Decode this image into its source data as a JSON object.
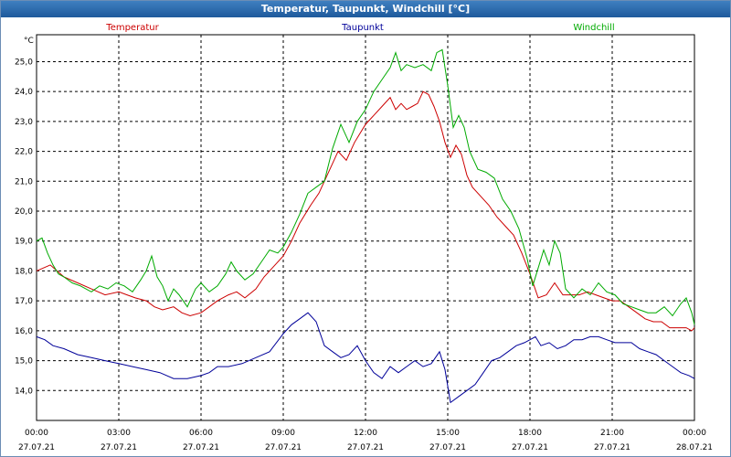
{
  "window": {
    "title": "Temperatur, Taupunkt, Windchill [°C]"
  },
  "chart_data": {
    "type": "line",
    "unit_label": "°C",
    "ylim": [
      13.0,
      25.9
    ],
    "yticks": [
      14.0,
      15.0,
      16.0,
      17.0,
      18.0,
      19.0,
      20.0,
      21.0,
      22.0,
      23.0,
      24.0,
      25.0
    ],
    "ytick_labels": [
      "14,0",
      "15,0",
      "16,0",
      "17,0",
      "18,0",
      "19,0",
      "20,0",
      "21,0",
      "22,0",
      "23,0",
      "24,0",
      "25,0"
    ],
    "xlim": [
      0,
      24
    ],
    "xticks": [
      {
        "h": 0,
        "time": "00:00",
        "date": "27.07.21"
      },
      {
        "h": 3,
        "time": "03:00",
        "date": "27.07.21"
      },
      {
        "h": 6,
        "time": "06:00",
        "date": "27.07.21"
      },
      {
        "h": 9,
        "time": "09:00",
        "date": "27.07.21"
      },
      {
        "h": 12,
        "time": "12:00",
        "date": "27.07.21"
      },
      {
        "h": 15,
        "time": "15:00",
        "date": "27.07.21"
      },
      {
        "h": 18,
        "time": "18:00",
        "date": "27.07.21"
      },
      {
        "h": 21,
        "time": "21:00",
        "date": "27.07.21"
      },
      {
        "h": 24,
        "time": "00:00",
        "date": "28.07.21"
      }
    ],
    "grid": true,
    "series": [
      {
        "name": "Temperatur",
        "color": "#cc0000",
        "points": [
          [
            0,
            18.0
          ],
          [
            0.25,
            18.1
          ],
          [
            0.5,
            18.2
          ],
          [
            0.75,
            18.0
          ],
          [
            1,
            17.8
          ],
          [
            1.5,
            17.6
          ],
          [
            2,
            17.4
          ],
          [
            2.5,
            17.2
          ],
          [
            3,
            17.3
          ],
          [
            3.3,
            17.2
          ],
          [
            3.6,
            17.1
          ],
          [
            4,
            17.0
          ],
          [
            4.3,
            16.8
          ],
          [
            4.6,
            16.7
          ],
          [
            5,
            16.8
          ],
          [
            5.3,
            16.6
          ],
          [
            5.6,
            16.5
          ],
          [
            6,
            16.6
          ],
          [
            6.3,
            16.8
          ],
          [
            6.6,
            17.0
          ],
          [
            7,
            17.2
          ],
          [
            7.3,
            17.3
          ],
          [
            7.6,
            17.1
          ],
          [
            8,
            17.4
          ],
          [
            8.3,
            17.8
          ],
          [
            8.6,
            18.1
          ],
          [
            9,
            18.5
          ],
          [
            9.3,
            19.0
          ],
          [
            9.6,
            19.6
          ],
          [
            10,
            20.2
          ],
          [
            10.3,
            20.6
          ],
          [
            10.6,
            21.2
          ],
          [
            11,
            22.0
          ],
          [
            11.3,
            21.7
          ],
          [
            11.6,
            22.3
          ],
          [
            12,
            22.9
          ],
          [
            12.3,
            23.2
          ],
          [
            12.6,
            23.5
          ],
          [
            12.9,
            23.8
          ],
          [
            13.1,
            23.4
          ],
          [
            13.3,
            23.6
          ],
          [
            13.5,
            23.4
          ],
          [
            13.7,
            23.5
          ],
          [
            13.9,
            23.6
          ],
          [
            14.1,
            24.0
          ],
          [
            14.3,
            23.9
          ],
          [
            14.5,
            23.5
          ],
          [
            14.7,
            23.0
          ],
          [
            14.9,
            22.3
          ],
          [
            15.1,
            21.8
          ],
          [
            15.3,
            22.2
          ],
          [
            15.5,
            21.9
          ],
          [
            15.7,
            21.2
          ],
          [
            15.9,
            20.8
          ],
          [
            16.2,
            20.5
          ],
          [
            16.5,
            20.2
          ],
          [
            16.8,
            19.8
          ],
          [
            17.1,
            19.5
          ],
          [
            17.4,
            19.2
          ],
          [
            17.7,
            18.6
          ],
          [
            18,
            17.9
          ],
          [
            18.3,
            17.1
          ],
          [
            18.6,
            17.2
          ],
          [
            18.9,
            17.6
          ],
          [
            19.2,
            17.2
          ],
          [
            19.5,
            17.2
          ],
          [
            19.8,
            17.2
          ],
          [
            20.1,
            17.3
          ],
          [
            20.4,
            17.2
          ],
          [
            20.7,
            17.1
          ],
          [
            21,
            17.0
          ],
          [
            21.3,
            17.0
          ],
          [
            21.6,
            16.8
          ],
          [
            21.9,
            16.6
          ],
          [
            22.2,
            16.4
          ],
          [
            22.5,
            16.3
          ],
          [
            22.8,
            16.3
          ],
          [
            23.1,
            16.1
          ],
          [
            23.4,
            16.1
          ],
          [
            23.7,
            16.1
          ],
          [
            23.9,
            16.0
          ],
          [
            24,
            16.1
          ]
        ]
      },
      {
        "name": "Taupunkt",
        "color": "#000099",
        "points": [
          [
            0,
            15.8
          ],
          [
            0.3,
            15.7
          ],
          [
            0.6,
            15.5
          ],
          [
            1,
            15.4
          ],
          [
            1.5,
            15.2
          ],
          [
            2,
            15.1
          ],
          [
            2.5,
            15.0
          ],
          [
            3,
            14.9
          ],
          [
            3.5,
            14.8
          ],
          [
            4,
            14.7
          ],
          [
            4.5,
            14.6
          ],
          [
            5,
            14.4
          ],
          [
            5.5,
            14.4
          ],
          [
            6,
            14.5
          ],
          [
            6.3,
            14.6
          ],
          [
            6.6,
            14.8
          ],
          [
            7,
            14.8
          ],
          [
            7.5,
            14.9
          ],
          [
            8,
            15.1
          ],
          [
            8.5,
            15.3
          ],
          [
            9,
            15.9
          ],
          [
            9.3,
            16.2
          ],
          [
            9.6,
            16.4
          ],
          [
            9.9,
            16.6
          ],
          [
            10.2,
            16.3
          ],
          [
            10.5,
            15.5
          ],
          [
            10.8,
            15.3
          ],
          [
            11.1,
            15.1
          ],
          [
            11.4,
            15.2
          ],
          [
            11.7,
            15.5
          ],
          [
            12,
            15.0
          ],
          [
            12.3,
            14.6
          ],
          [
            12.6,
            14.4
          ],
          [
            12.9,
            14.8
          ],
          [
            13.2,
            14.6
          ],
          [
            13.5,
            14.8
          ],
          [
            13.8,
            15.0
          ],
          [
            14.1,
            14.8
          ],
          [
            14.4,
            14.9
          ],
          [
            14.7,
            15.3
          ],
          [
            14.9,
            14.7
          ],
          [
            15.1,
            13.6
          ],
          [
            15.4,
            13.8
          ],
          [
            15.7,
            14.0
          ],
          [
            16,
            14.2
          ],
          [
            16.3,
            14.6
          ],
          [
            16.6,
            15.0
          ],
          [
            16.9,
            15.1
          ],
          [
            17.2,
            15.3
          ],
          [
            17.5,
            15.5
          ],
          [
            17.8,
            15.6
          ],
          [
            18,
            15.7
          ],
          [
            18.2,
            15.8
          ],
          [
            18.4,
            15.5
          ],
          [
            18.7,
            15.6
          ],
          [
            19,
            15.4
          ],
          [
            19.3,
            15.5
          ],
          [
            19.6,
            15.7
          ],
          [
            19.9,
            15.7
          ],
          [
            20.2,
            15.8
          ],
          [
            20.5,
            15.8
          ],
          [
            20.8,
            15.7
          ],
          [
            21.1,
            15.6
          ],
          [
            21.4,
            15.6
          ],
          [
            21.7,
            15.6
          ],
          [
            22,
            15.4
          ],
          [
            22.3,
            15.3
          ],
          [
            22.6,
            15.2
          ],
          [
            22.9,
            15.0
          ],
          [
            23.2,
            14.8
          ],
          [
            23.5,
            14.6
          ],
          [
            23.8,
            14.5
          ],
          [
            24,
            14.4
          ]
        ]
      },
      {
        "name": "Windchill",
        "color": "#00aa00",
        "points": [
          [
            0,
            19.0
          ],
          [
            0.2,
            19.1
          ],
          [
            0.4,
            18.6
          ],
          [
            0.6,
            18.2
          ],
          [
            0.8,
            17.9
          ],
          [
            1,
            17.8
          ],
          [
            1.3,
            17.6
          ],
          [
            1.6,
            17.5
          ],
          [
            2,
            17.3
          ],
          [
            2.3,
            17.5
          ],
          [
            2.6,
            17.4
          ],
          [
            2.9,
            17.6
          ],
          [
            3.2,
            17.5
          ],
          [
            3.5,
            17.3
          ],
          [
            3.8,
            17.7
          ],
          [
            4,
            18.0
          ],
          [
            4.2,
            18.5
          ],
          [
            4.4,
            17.8
          ],
          [
            4.6,
            17.5
          ],
          [
            4.8,
            17.0
          ],
          [
            5,
            17.4
          ],
          [
            5.2,
            17.2
          ],
          [
            5.5,
            16.8
          ],
          [
            5.8,
            17.4
          ],
          [
            6,
            17.6
          ],
          [
            6.3,
            17.3
          ],
          [
            6.6,
            17.5
          ],
          [
            6.9,
            17.9
          ],
          [
            7.1,
            18.3
          ],
          [
            7.3,
            18.0
          ],
          [
            7.6,
            17.7
          ],
          [
            7.9,
            17.9
          ],
          [
            8.2,
            18.3
          ],
          [
            8.5,
            18.7
          ],
          [
            8.8,
            18.6
          ],
          [
            9,
            18.8
          ],
          [
            9.3,
            19.3
          ],
          [
            9.6,
            19.9
          ],
          [
            9.9,
            20.6
          ],
          [
            10.2,
            20.8
          ],
          [
            10.5,
            21.0
          ],
          [
            10.8,
            22.1
          ],
          [
            11.1,
            22.9
          ],
          [
            11.4,
            22.3
          ],
          [
            11.7,
            23.0
          ],
          [
            12,
            23.4
          ],
          [
            12.3,
            24.0
          ],
          [
            12.6,
            24.4
          ],
          [
            12.9,
            24.8
          ],
          [
            13.1,
            25.3
          ],
          [
            13.3,
            24.7
          ],
          [
            13.5,
            24.9
          ],
          [
            13.8,
            24.8
          ],
          [
            14.1,
            24.9
          ],
          [
            14.4,
            24.7
          ],
          [
            14.6,
            25.3
          ],
          [
            14.8,
            25.4
          ],
          [
            15,
            24.2
          ],
          [
            15.2,
            22.8
          ],
          [
            15.4,
            23.2
          ],
          [
            15.6,
            22.8
          ],
          [
            15.8,
            22.0
          ],
          [
            16.1,
            21.4
          ],
          [
            16.4,
            21.3
          ],
          [
            16.7,
            21.1
          ],
          [
            17,
            20.4
          ],
          [
            17.3,
            20.0
          ],
          [
            17.6,
            19.4
          ],
          [
            17.9,
            18.4
          ],
          [
            18.1,
            17.5
          ],
          [
            18.3,
            18.1
          ],
          [
            18.5,
            18.7
          ],
          [
            18.7,
            18.2
          ],
          [
            18.9,
            19.0
          ],
          [
            19.1,
            18.6
          ],
          [
            19.3,
            17.4
          ],
          [
            19.6,
            17.1
          ],
          [
            19.9,
            17.4
          ],
          [
            20.2,
            17.2
          ],
          [
            20.5,
            17.6
          ],
          [
            20.8,
            17.3
          ],
          [
            21.1,
            17.2
          ],
          [
            21.4,
            16.9
          ],
          [
            21.7,
            16.8
          ],
          [
            22,
            16.7
          ],
          [
            22.3,
            16.6
          ],
          [
            22.6,
            16.6
          ],
          [
            22.9,
            16.8
          ],
          [
            23.2,
            16.5
          ],
          [
            23.5,
            16.9
          ],
          [
            23.7,
            17.1
          ],
          [
            23.9,
            16.6
          ],
          [
            24,
            16.2
          ]
        ]
      }
    ]
  }
}
